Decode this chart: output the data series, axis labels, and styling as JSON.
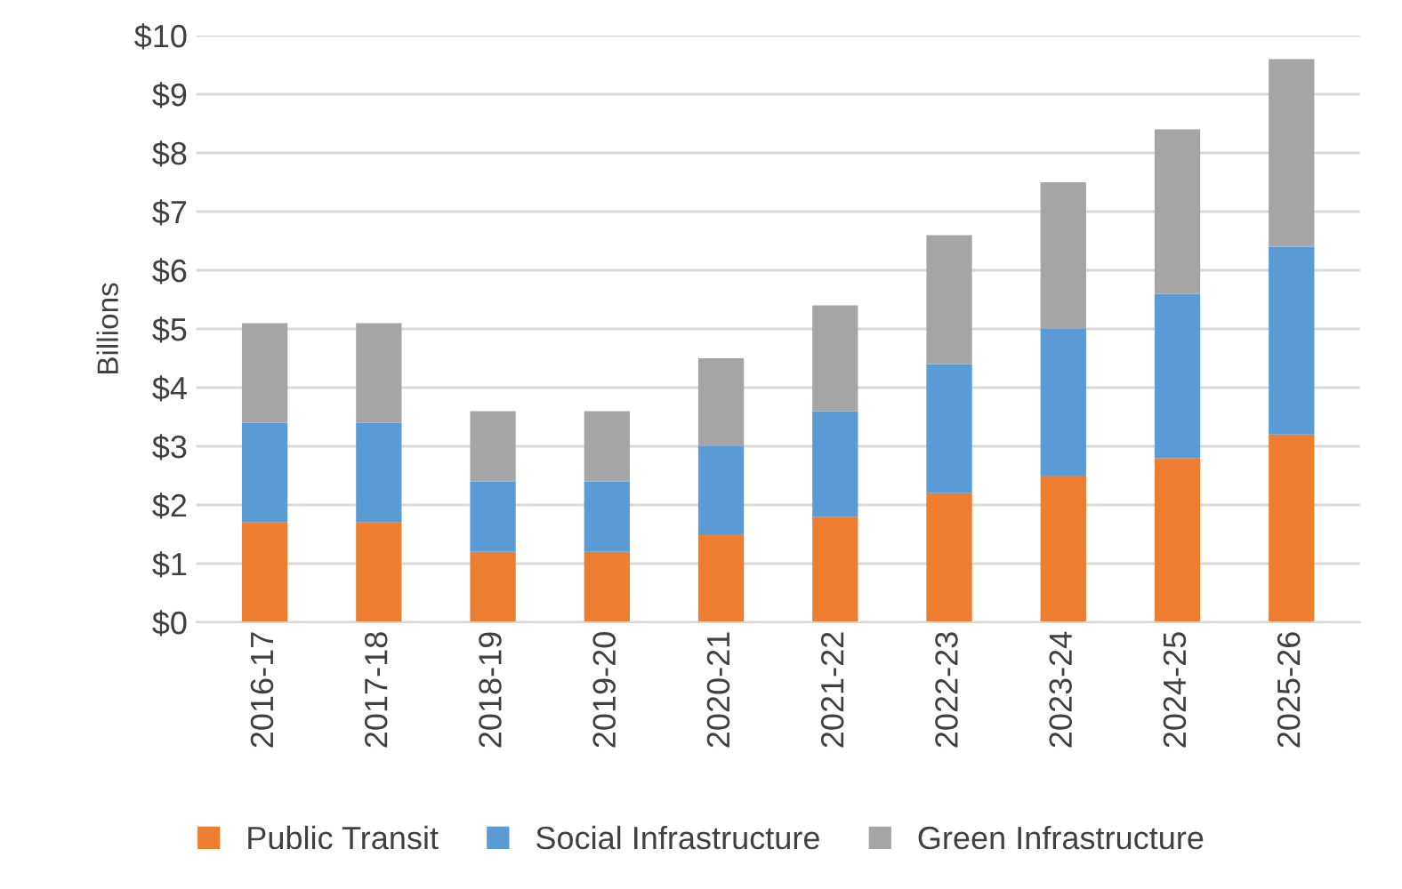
{
  "chart_data": {
    "type": "bar",
    "stacked": true,
    "ylabel": "Billions",
    "categories": [
      "2016-17",
      "2017-18",
      "2018-19",
      "2019-20",
      "2020-21",
      "2021-22",
      "2022-23",
      "2023-24",
      "2024-25",
      "2025-26"
    ],
    "series": [
      {
        "name": "Public Transit",
        "color": "#ed7d31",
        "values": [
          1.7,
          1.7,
          1.2,
          1.2,
          1.5,
          1.8,
          2.2,
          2.5,
          2.8,
          3.2
        ]
      },
      {
        "name": "Social Infrastructure",
        "color": "#5b9bd5",
        "values": [
          1.7,
          1.7,
          1.2,
          1.2,
          1.5,
          1.8,
          2.2,
          2.5,
          2.8,
          3.2
        ]
      },
      {
        "name": "Green Infrastructure",
        "color": "#a5a5a5",
        "values": [
          1.7,
          1.7,
          1.2,
          1.2,
          1.5,
          1.8,
          2.2,
          2.5,
          2.8,
          3.2
        ]
      }
    ],
    "ylim": [
      0,
      10
    ],
    "yticks": [
      {
        "value": 0,
        "label": "$0"
      },
      {
        "value": 1,
        "label": "$1"
      },
      {
        "value": 2,
        "label": "$2"
      },
      {
        "value": 3,
        "label": "$3"
      },
      {
        "value": 4,
        "label": "$4"
      },
      {
        "value": 5,
        "label": "$5"
      },
      {
        "value": 6,
        "label": "$6"
      },
      {
        "value": 7,
        "label": "$7"
      },
      {
        "value": 8,
        "label": "$8"
      },
      {
        "value": 9,
        "label": "$9"
      },
      {
        "value": 10,
        "label": "$10"
      }
    ],
    "grid": "y",
    "legend": "bottom"
  }
}
